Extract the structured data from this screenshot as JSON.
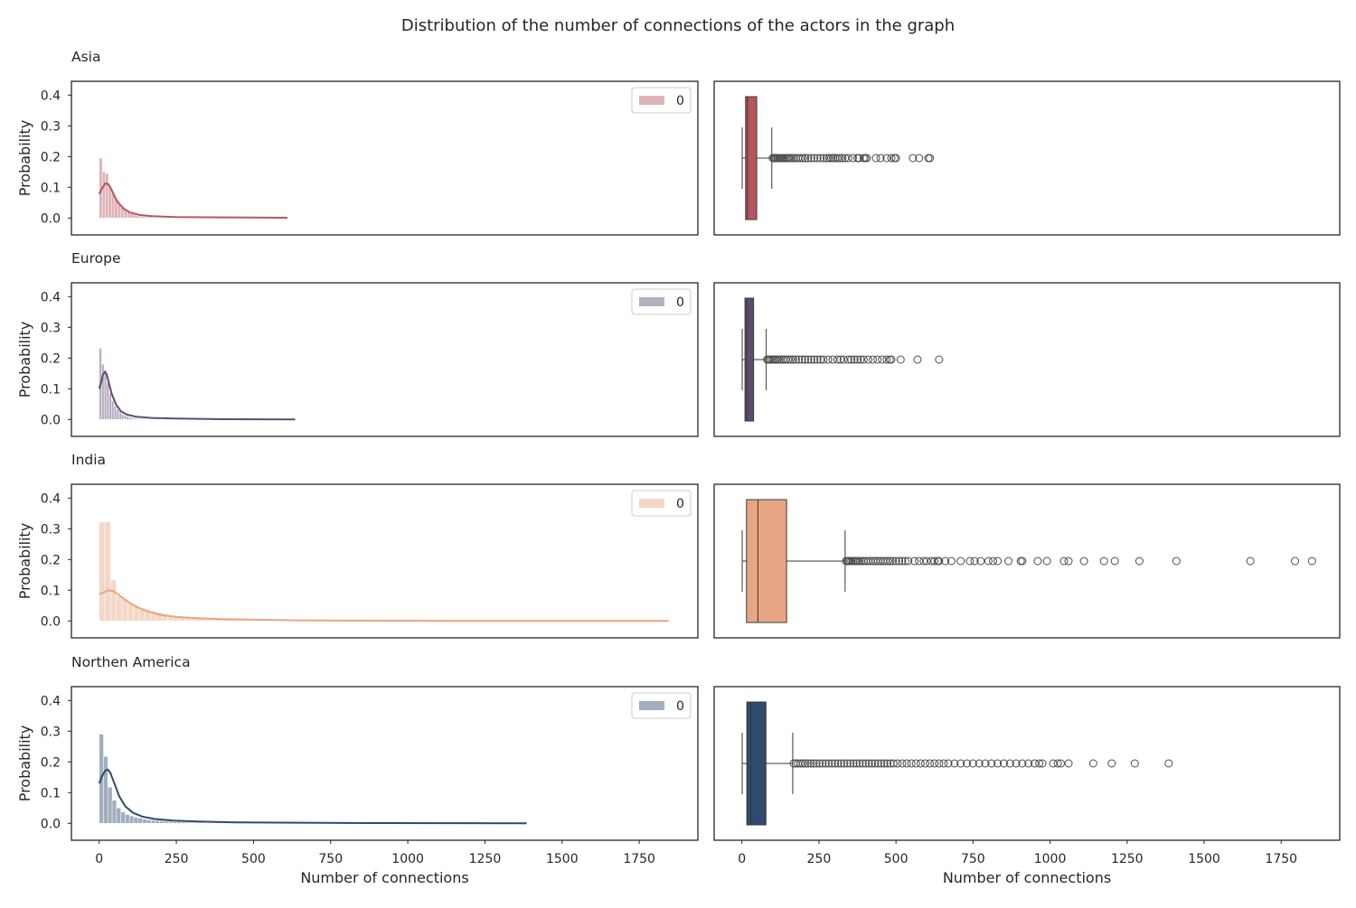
{
  "title": "Distribution of the number of connections of the actors in the graph",
  "x_axis_label": "Number of connections",
  "y_axis_label": "Probability",
  "x_ticks": [
    "0",
    "250",
    "500",
    "750",
    "1000",
    "1250",
    "1500",
    "1750"
  ],
  "y_ticks": [
    "0.0",
    "0.1",
    "0.2",
    "0.3",
    "0.4"
  ],
  "chart_data": [
    {
      "type": "histogram",
      "row_title": "Asia",
      "color": "#b5565f",
      "legend": "0",
      "xlim": [
        -90,
        1940
      ],
      "ylim": [
        -0.055,
        0.445
      ],
      "bin_width": 10,
      "hist_values": [
        0.195,
        0.15,
        0.145,
        0.105,
        0.082,
        0.06,
        0.045,
        0.034,
        0.025,
        0.019,
        0.014,
        0.011,
        0.008,
        0.006,
        0.005,
        0.004,
        0.003,
        0.002,
        0.002,
        0.001
      ],
      "kde_points": [
        [
          0,
          0.078
        ],
        [
          10,
          0.098
        ],
        [
          20,
          0.113
        ],
        [
          30,
          0.11
        ],
        [
          40,
          0.092
        ],
        [
          50,
          0.07
        ],
        [
          60,
          0.052
        ],
        [
          80,
          0.03
        ],
        [
          100,
          0.018
        ],
        [
          130,
          0.01
        ],
        [
          170,
          0.006
        ],
        [
          250,
          0.003
        ],
        [
          400,
          0.002
        ],
        [
          610,
          0.001
        ]
      ]
    },
    {
      "type": "box",
      "row_title": "Asia",
      "color": "#b5565f",
      "xlim": [
        -90,
        1940
      ],
      "whisker_low": 1,
      "q1": 12,
      "median": 18,
      "q3": 48,
      "whisker_high": 97,
      "outliers": [
        100,
        104,
        108,
        112,
        116,
        120,
        125,
        130,
        135,
        140,
        145,
        150,
        156,
        162,
        168,
        175,
        182,
        190,
        198,
        206,
        215,
        225,
        235,
        245,
        255,
        265,
        275,
        283,
        290,
        296,
        302,
        310,
        318,
        326,
        335,
        345,
        360,
        375,
        380,
        395,
        400,
        405,
        435,
        450,
        470,
        485,
        495,
        500,
        555,
        575,
        605,
        610
      ]
    },
    {
      "type": "histogram",
      "row_title": "Europe",
      "color": "#5e4c70",
      "legend": "0",
      "xlim": [
        -90,
        1940
      ],
      "ylim": [
        -0.055,
        0.445
      ],
      "bin_width": 8,
      "hist_values": [
        0.232,
        0.18,
        0.16,
        0.12,
        0.085,
        0.06,
        0.043,
        0.032,
        0.024,
        0.018,
        0.013,
        0.01,
        0.007,
        0.005,
        0.004,
        0.003,
        0.002,
        0.002
      ],
      "kde_points": [
        [
          0,
          0.1
        ],
        [
          6,
          0.12
        ],
        [
          12,
          0.145
        ],
        [
          18,
          0.155
        ],
        [
          24,
          0.148
        ],
        [
          32,
          0.118
        ],
        [
          40,
          0.085
        ],
        [
          55,
          0.048
        ],
        [
          70,
          0.027
        ],
        [
          90,
          0.016
        ],
        [
          120,
          0.009
        ],
        [
          170,
          0.005
        ],
        [
          250,
          0.003
        ],
        [
          400,
          0.001
        ],
        [
          635,
          0.0
        ]
      ]
    },
    {
      "type": "box",
      "row_title": "Europe",
      "color": "#5e4c70",
      "xlim": [
        -90,
        1940
      ],
      "whisker_low": 1,
      "q1": 10,
      "median": 16,
      "q3": 38,
      "whisker_high": 79,
      "outliers": [
        82,
        86,
        90,
        95,
        100,
        105,
        110,
        116,
        122,
        128,
        135,
        142,
        150,
        158,
        166,
        175,
        185,
        195,
        205,
        215,
        225,
        235,
        245,
        255,
        265,
        280,
        295,
        310,
        320,
        330,
        345,
        355,
        365,
        375,
        385,
        395,
        410,
        425,
        440,
        455,
        470,
        480,
        485,
        515,
        570,
        640
      ]
    },
    {
      "type": "histogram",
      "row_title": "India",
      "color": "#e8a583",
      "legend": "0",
      "xlim": [
        -90,
        1940
      ],
      "ylim": [
        -0.055,
        0.445
      ],
      "bin_width": 18.5,
      "hist_values": [
        0.322,
        0.322,
        0.133,
        0.082,
        0.072,
        0.058,
        0.048,
        0.042,
        0.038,
        0.032,
        0.027,
        0.023,
        0.02,
        0.017,
        0.015,
        0.013,
        0.011,
        0.01,
        0.009,
        0.008,
        0.007,
        0.006,
        0.005,
        0.005,
        0.004,
        0.004,
        0.003,
        0.003,
        0.003,
        0.002,
        0.002,
        0.002,
        0.002,
        0.001,
        0.001,
        0.001,
        0.001,
        0.001,
        0.001,
        0.001
      ],
      "kde_points": [
        [
          0,
          0.088
        ],
        [
          15,
          0.093
        ],
        [
          30,
          0.1
        ],
        [
          45,
          0.097
        ],
        [
          60,
          0.088
        ],
        [
          80,
          0.072
        ],
        [
          100,
          0.058
        ],
        [
          130,
          0.042
        ],
        [
          160,
          0.03
        ],
        [
          200,
          0.02
        ],
        [
          250,
          0.013
        ],
        [
          320,
          0.009
        ],
        [
          400,
          0.006
        ],
        [
          500,
          0.004
        ],
        [
          650,
          0.002
        ],
        [
          900,
          0.001
        ],
        [
          1300,
          0.0
        ],
        [
          1845,
          0.0
        ]
      ]
    },
    {
      "type": "box",
      "row_title": "India",
      "color": "#e8a583",
      "xlim": [
        -90,
        1940
      ],
      "whisker_low": 1,
      "q1": 15,
      "median": 52,
      "q3": 145,
      "whisker_high": 335,
      "outliers": [
        338,
        342,
        346,
        350,
        355,
        360,
        365,
        370,
        376,
        382,
        388,
        395,
        402,
        410,
        418,
        426,
        434,
        442,
        450,
        458,
        466,
        474,
        482,
        490,
        500,
        510,
        520,
        530,
        540,
        560,
        575,
        590,
        600,
        615,
        625,
        635,
        640,
        660,
        680,
        710,
        740,
        755,
        775,
        800,
        815,
        830,
        865,
        905,
        910,
        960,
        990,
        1045,
        1060,
        1110,
        1175,
        1210,
        1290,
        1410,
        1650,
        1795,
        1850
      ]
    },
    {
      "type": "histogram",
      "row_title": "Northen America",
      "color": "#2e4a6e",
      "legend": "0",
      "xlim": [
        -90,
        1940
      ],
      "ylim": [
        -0.055,
        0.445
      ],
      "bin_width": 14,
      "hist_values": [
        0.29,
        0.218,
        0.118,
        0.075,
        0.05,
        0.037,
        0.029,
        0.024,
        0.02,
        0.017,
        0.014,
        0.012,
        0.01,
        0.009,
        0.008,
        0.007,
        0.006,
        0.005,
        0.005,
        0.004,
        0.004,
        0.003,
        0.003,
        0.003,
        0.002,
        0.002,
        0.002,
        0.002,
        0.002,
        0.001,
        0.001,
        0.001,
        0.001,
        0.001,
        0.001
      ],
      "kde_points": [
        [
          0,
          0.13
        ],
        [
          10,
          0.155
        ],
        [
          20,
          0.172
        ],
        [
          28,
          0.175
        ],
        [
          36,
          0.165
        ],
        [
          50,
          0.128
        ],
        [
          65,
          0.088
        ],
        [
          85,
          0.055
        ],
        [
          110,
          0.034
        ],
        [
          140,
          0.022
        ],
        [
          180,
          0.014
        ],
        [
          240,
          0.009
        ],
        [
          320,
          0.006
        ],
        [
          450,
          0.003
        ],
        [
          650,
          0.002
        ],
        [
          900,
          0.001
        ],
        [
          1385,
          0.0
        ]
      ]
    },
    {
      "type": "box",
      "row_title": "Northen America",
      "color": "#2e4a6e",
      "xlim": [
        -90,
        1940
      ],
      "whisker_low": 1,
      "q1": 16,
      "median": 30,
      "q3": 78,
      "whisker_high": 165,
      "outliers": [
        168,
        175,
        182,
        190,
        198,
        206,
        215,
        224,
        233,
        242,
        252,
        262,
        272,
        282,
        292,
        302,
        312,
        322,
        332,
        342,
        352,
        362,
        372,
        382,
        392,
        402,
        412,
        422,
        432,
        442,
        452,
        462,
        472,
        482,
        492,
        505,
        520,
        535,
        550,
        565,
        580,
        595,
        610,
        625,
        640,
        655,
        670,
        690,
        710,
        730,
        750,
        770,
        790,
        810,
        830,
        850,
        870,
        890,
        910,
        930,
        950,
        965,
        975,
        1010,
        1025,
        1035,
        1060,
        1140,
        1200,
        1275,
        1385
      ]
    }
  ]
}
